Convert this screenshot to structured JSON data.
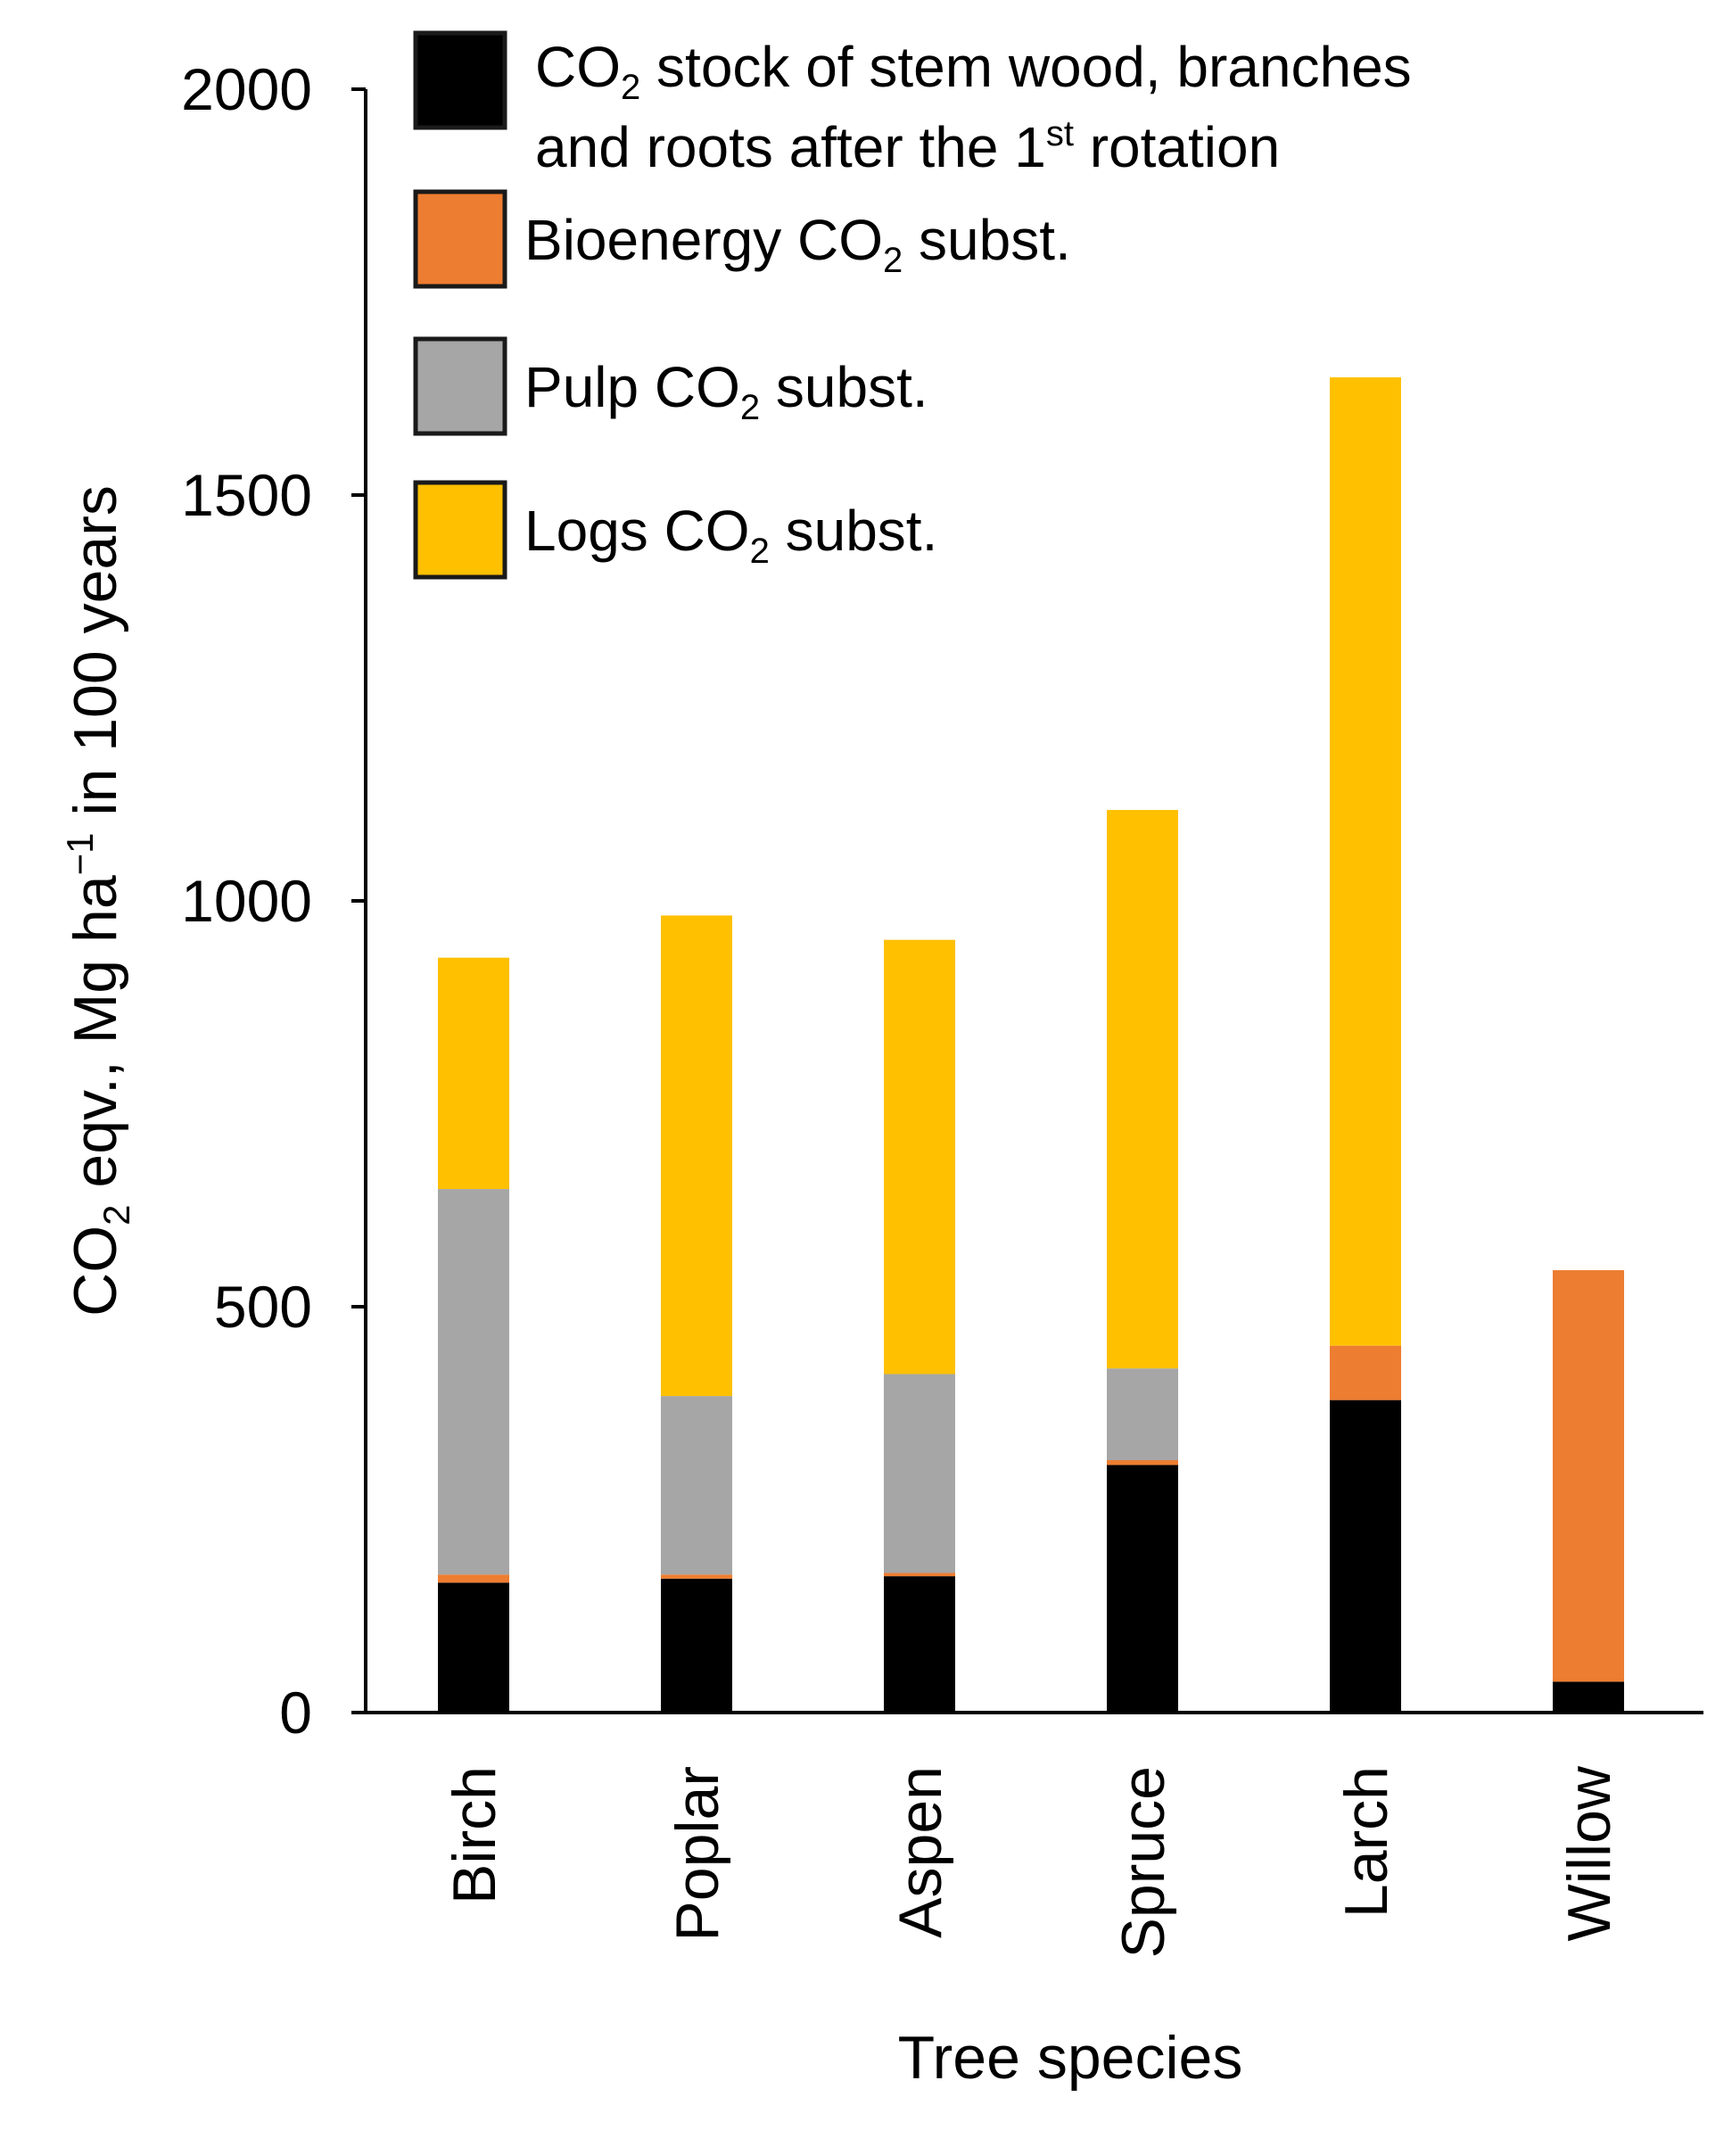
{
  "chart_data": {
    "type": "bar",
    "stacked": true,
    "title": "",
    "xlabel": "Tree species",
    "ylabel": {
      "parts": [
        {
          "text": "CO",
          "style": "normal"
        },
        {
          "text": "2",
          "style": "sub"
        },
        {
          "text": " eqv., Mg ha",
          "style": "normal"
        },
        {
          "text": "−1",
          "style": "sup"
        },
        {
          "text": " in 100 years",
          "style": "normal"
        }
      ]
    },
    "ylim": [
      0,
      2000
    ],
    "yticks": [
      "0",
      "500",
      "1000",
      "1500",
      "2000"
    ],
    "grid": false,
    "legend_position": "top",
    "categories": [
      "Birch",
      "Poplar",
      "Aspen",
      "Spruce",
      "Larch",
      "Willow"
    ],
    "series": [
      {
        "name": "CO2 stock of stem wood, branches and roots after the 1st rotation",
        "color": "#000000",
        "values": [
          160,
          165,
          168,
          305,
          385,
          38
        ]
      },
      {
        "name": "Bioenergy CO2 subst.",
        "color": "#ED7D31",
        "values": [
          10,
          5,
          4,
          6,
          67,
          507
        ]
      },
      {
        "name": "Pulp CO2 subst.",
        "color": "#A6A6A6",
        "values": [
          475,
          220,
          245,
          113,
          0,
          0
        ]
      },
      {
        "name": "Logs CO2 subst.",
        "color": "#FFC000",
        "values": [
          285,
          592,
          535,
          688,
          1193,
          0
        ]
      }
    ],
    "legend": [
      {
        "lines": [
          [
            {
              "text": "CO",
              "style": "normal"
            },
            {
              "text": "2",
              "style": "sub"
            },
            {
              "text": " stock of stem wood, branches",
              "style": "normal"
            }
          ],
          [
            {
              "text": "and roots after  the 1",
              "style": "normal"
            },
            {
              "text": "st",
              "style": "sup"
            },
            {
              "text": " rotation",
              "style": "normal"
            }
          ]
        ]
      },
      {
        "lines": [
          [
            {
              "text": "Bioenergy CO",
              "style": "normal"
            },
            {
              "text": "2",
              "style": "sub"
            },
            {
              "text": " subst.",
              "style": "normal"
            }
          ]
        ]
      },
      {
        "lines": [
          [
            {
              "text": "Pulp CO",
              "style": "normal"
            },
            {
              "text": "2",
              "style": "sub"
            },
            {
              "text": " subst.",
              "style": "normal"
            }
          ]
        ]
      },
      {
        "lines": [
          [
            {
              "text": "Logs CO",
              "style": "normal"
            },
            {
              "text": "2",
              "style": "sub"
            },
            {
              "text": " subst.",
              "style": "normal"
            }
          ]
        ]
      }
    ]
  }
}
